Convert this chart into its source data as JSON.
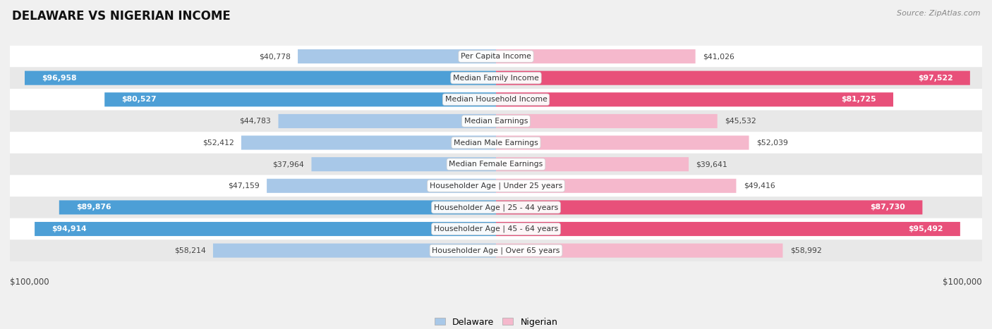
{
  "title": "DELAWARE VS NIGERIAN INCOME",
  "source": "Source: ZipAtlas.com",
  "categories": [
    "Per Capita Income",
    "Median Family Income",
    "Median Household Income",
    "Median Earnings",
    "Median Male Earnings",
    "Median Female Earnings",
    "Householder Age | Under 25 years",
    "Householder Age | 25 - 44 years",
    "Householder Age | 45 - 64 years",
    "Householder Age | Over 65 years"
  ],
  "delaware_values": [
    40778,
    96958,
    80527,
    44783,
    52412,
    37964,
    47159,
    89876,
    94914,
    58214
  ],
  "nigerian_values": [
    41026,
    97522,
    81725,
    45532,
    52039,
    39641,
    49416,
    87730,
    95492,
    58992
  ],
  "max_value": 100000,
  "delaware_color_light": "#a8c8e8",
  "delaware_color_dark": "#4d9fd6",
  "nigerian_color_light": "#f5b8cc",
  "nigerian_color_dark": "#e8507a",
  "bg_color": "#f0f0f0",
  "row_bg_white": "#ffffff",
  "row_bg_gray": "#e8e8e8",
  "threshold_dark": 65000,
  "legend_label_delaware": "Delaware",
  "legend_label_nigerian": "Nigerian"
}
